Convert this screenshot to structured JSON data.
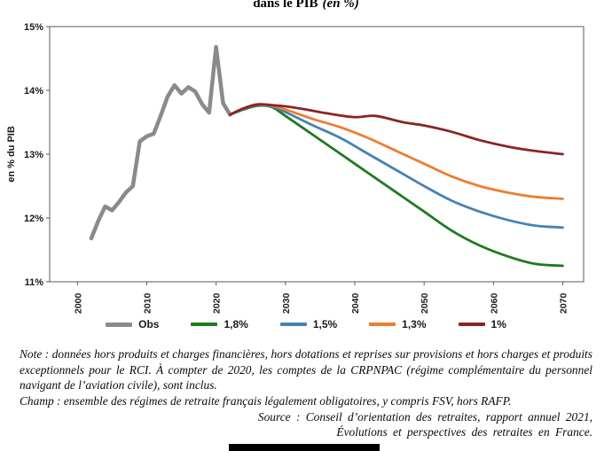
{
  "title": {
    "bold": "dans le PIB",
    "italic": "(en %)"
  },
  "chart_data": {
    "type": "line",
    "title": "dans le PIB (en %)",
    "xlabel": "",
    "ylabel": "en % du PIB",
    "ylim": [
      11,
      15
    ],
    "yticks": [
      11,
      12,
      13,
      14,
      15
    ],
    "ytick_labels": [
      "11%",
      "12%",
      "13%",
      "14%",
      "15%"
    ],
    "xlim": [
      1996,
      2073
    ],
    "xticks": [
      2000,
      2010,
      2020,
      2030,
      2040,
      2050,
      2060,
      2070
    ],
    "grid": false,
    "legend_position": "bottom",
    "series": [
      {
        "name": "Obs",
        "color": "#8a8a8a",
        "stroke_width": 4.5,
        "smooth": false,
        "x": [
          2002,
          2003,
          2004,
          2005,
          2006,
          2007,
          2008,
          2009,
          2010,
          2011,
          2012,
          2013,
          2014,
          2015,
          2016,
          2017,
          2018,
          2019,
          2020,
          2021,
          2022
        ],
        "y": [
          11.68,
          11.95,
          12.18,
          12.12,
          12.25,
          12.4,
          12.5,
          13.2,
          13.28,
          13.32,
          13.6,
          13.9,
          14.08,
          13.95,
          14.05,
          13.98,
          13.78,
          13.65,
          14.68,
          13.8,
          13.62
        ]
      },
      {
        "name": "1,8%",
        "color": "#1e7b1e",
        "stroke_width": 2.8,
        "smooth": true,
        "x": [
          2022,
          2024,
          2026,
          2028,
          2030,
          2034,
          2038,
          2042,
          2046,
          2050,
          2054,
          2058,
          2062,
          2066,
          2070
        ],
        "y": [
          13.62,
          13.7,
          13.76,
          13.74,
          13.6,
          13.3,
          13.0,
          12.7,
          12.4,
          12.1,
          11.8,
          11.57,
          11.4,
          11.28,
          11.25
        ]
      },
      {
        "name": "1,5%",
        "color": "#4682b4",
        "stroke_width": 2.8,
        "smooth": true,
        "x": [
          2022,
          2024,
          2026,
          2028,
          2030,
          2034,
          2038,
          2042,
          2046,
          2050,
          2054,
          2058,
          2062,
          2066,
          2070
        ],
        "y": [
          13.62,
          13.71,
          13.77,
          13.75,
          13.66,
          13.45,
          13.25,
          13.0,
          12.75,
          12.5,
          12.27,
          12.1,
          11.97,
          11.88,
          11.85
        ]
      },
      {
        "name": "1,3%",
        "color": "#ed7d31",
        "stroke_width": 2.8,
        "smooth": true,
        "x": [
          2022,
          2024,
          2026,
          2028,
          2030,
          2034,
          2038,
          2042,
          2046,
          2050,
          2054,
          2058,
          2062,
          2066,
          2070
        ],
        "y": [
          13.62,
          13.72,
          13.78,
          13.76,
          13.7,
          13.55,
          13.42,
          13.25,
          13.05,
          12.85,
          12.65,
          12.5,
          12.4,
          12.33,
          12.3
        ]
      },
      {
        "name": "1%",
        "color": "#8b2423",
        "stroke_width": 2.8,
        "smooth": true,
        "x": [
          2022,
          2024,
          2026,
          2028,
          2030,
          2033,
          2036,
          2040,
          2043,
          2047,
          2050,
          2054,
          2058,
          2062,
          2066,
          2070
        ],
        "y": [
          13.62,
          13.72,
          13.78,
          13.77,
          13.75,
          13.7,
          13.64,
          13.58,
          13.6,
          13.5,
          13.45,
          13.35,
          13.22,
          13.12,
          13.05,
          13.0
        ]
      }
    ]
  },
  "notes": {
    "note": "Note : données hors produits et charges financières, hors dotations et reprises sur provisions et hors charges et produits exceptionnels pour le RCI. À compter de 2020, les comptes de la CRPNPAC (régime complémentaire du personnel navigant de l’aviation civile), sont inclus.",
    "champ": "Champ : ensemble des régimes de retraite français légalement obligatoires, y compris FSV, hors RAFP.",
    "source_line1": "Source : Conseil d’orientation des retraites, rapport annuel 2021,",
    "source_line2": "Évolutions et perspectives des retraites en France."
  }
}
